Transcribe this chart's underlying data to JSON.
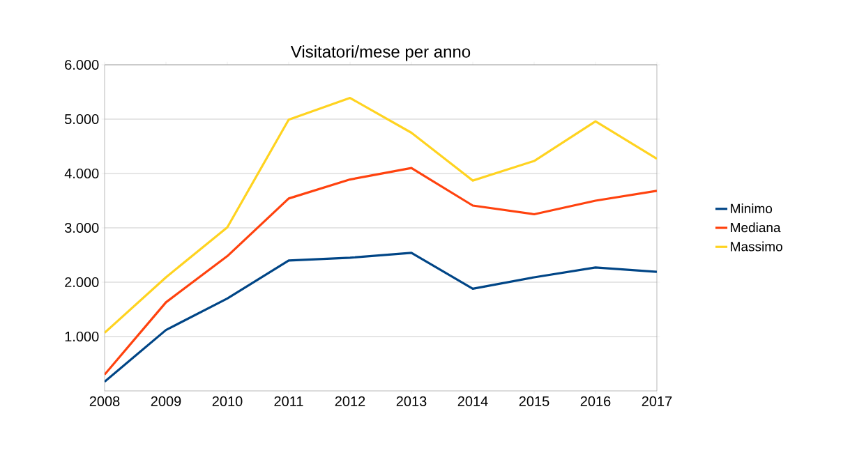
{
  "chart_data": {
    "type": "line",
    "title": "Visitatori/mese per anno",
    "x": [
      2008,
      2009,
      2010,
      2011,
      2012,
      2013,
      2014,
      2015,
      2016,
      2017
    ],
    "series": [
      {
        "name": "Minimo",
        "color": "#004586",
        "values": [
          170,
          1120,
          1700,
          2400,
          2450,
          2540,
          1880,
          2090,
          2270,
          2190
        ]
      },
      {
        "name": "Mediana",
        "color": "#ff420e",
        "values": [
          300,
          1630,
          2480,
          3540,
          3890,
          4100,
          3410,
          3250,
          3500,
          3680
        ]
      },
      {
        "name": "Massimo",
        "color": "#ffd320",
        "values": [
          1070,
          2090,
          3010,
          4990,
          5390,
          4750,
          3870,
          4230,
          4960,
          4270
        ]
      }
    ],
    "xlim": [
      2008,
      2017
    ],
    "xticks": [
      2008,
      2009,
      2010,
      2011,
      2012,
      2013,
      2014,
      2015,
      2016,
      2017
    ],
    "ylim": [
      0,
      6000
    ],
    "yticks": [
      {
        "value": 1000,
        "label": "1.000"
      },
      {
        "value": 2000,
        "label": "2.000"
      },
      {
        "value": 3000,
        "label": "3.000"
      },
      {
        "value": 4000,
        "label": "4.000"
      },
      {
        "value": 5000,
        "label": "5.000"
      },
      {
        "value": 6000,
        "label": "6.000"
      }
    ],
    "grid": "y",
    "legend": "right",
    "marker": "none",
    "line_style": "solid"
  }
}
